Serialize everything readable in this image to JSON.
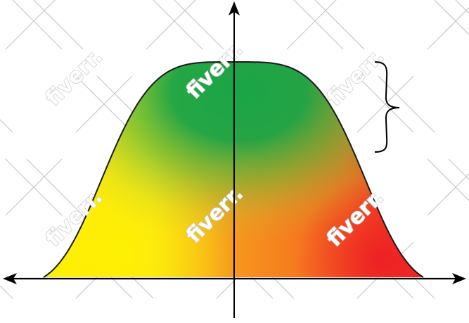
{
  "watermark": {
    "text": "fiverr.",
    "color": "#c9c9c9"
  },
  "colors": {
    "green": "#1aa547",
    "yellow": "#fff200",
    "orange": "#f7941d",
    "red": "#ed1c24",
    "outline": "#1a1a1a",
    "axes": "#000000"
  },
  "icons": {
    "x_axis_arrows": "double-headed-arrow",
    "y_axis_arrow": "up-arrow",
    "brace": "right-curly-brace"
  }
}
